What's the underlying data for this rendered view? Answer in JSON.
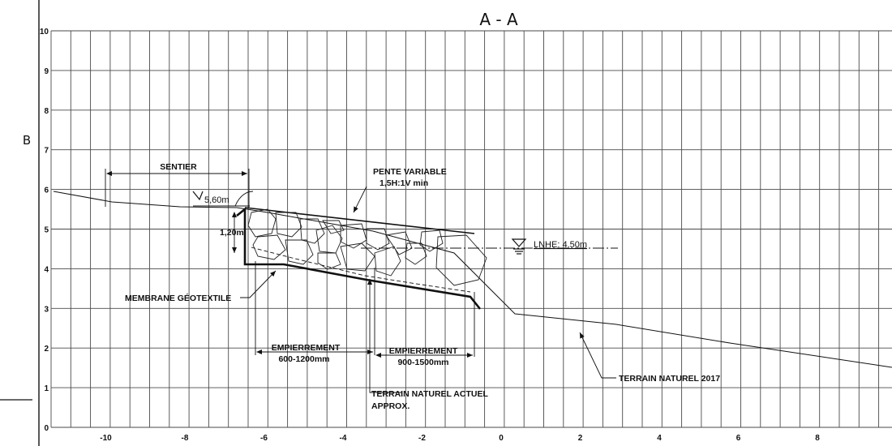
{
  "section_title": "A - A",
  "side_label": "B",
  "axes": {
    "x_ticks": [
      "-10",
      "-8",
      "-6",
      "-4",
      "-2",
      "0",
      "2",
      "4",
      "6",
      "8"
    ],
    "y_ticks": [
      "0",
      "1",
      "2",
      "3",
      "4",
      "5",
      "6",
      "7",
      "8",
      "9",
      "10"
    ]
  },
  "labels": {
    "sentier": "SENTIER",
    "sentier_elevation": "5,60m",
    "height_dim": "1,20m",
    "pente_line1": "PENTE VARIABLE",
    "pente_line2": "1,5H:1V min",
    "lnhe": "LNHE: 4,50m",
    "membrane": "MEMBRANE GÉOTEXTILE",
    "emp1_line1": "EMPIERREMENT",
    "emp1_line2": "600-1200mm",
    "emp2_line1": "EMPIERREMENT",
    "emp2_line2": "900-1500mm",
    "terrain_actuel_line1": "TERRAIN NATUREL ACTUEL",
    "terrain_actuel_line2": "APPROX.",
    "terrain_2017": "TERRAIN NATUREL 2017"
  }
}
